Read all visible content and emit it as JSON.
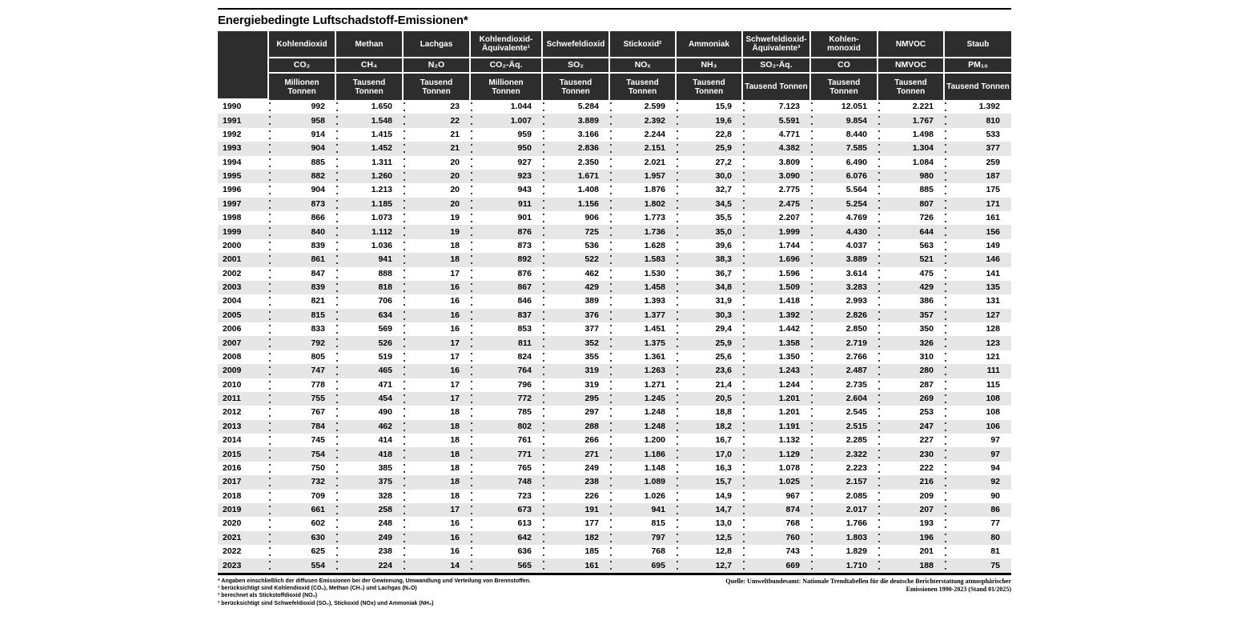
{
  "colors": {
    "header_bg": "#2d2d2d",
    "row_stripe": "#e6e6e6",
    "rule": "#000000"
  },
  "title": "Energiebedingte Luftschadstoff-Emissionen*",
  "table": {
    "year_header": "",
    "columns": [
      {
        "name": "Kohlendioxid",
        "formula": "CO₂",
        "unit": "Millionen\nTonnen"
      },
      {
        "name": "Methan",
        "formula": "CH₄",
        "unit": "Tausend Tonnen"
      },
      {
        "name": "Lachgas",
        "formula": "N₂O",
        "unit": "Tausend Tonnen"
      },
      {
        "name": "Kohlendioxid-\nÄquivalente¹",
        "formula": "CO₂-Äq.",
        "unit": "Millionen\nTonnen"
      },
      {
        "name": "Schwefeldioxid",
        "formula": "SO₂",
        "unit": "Tausend Tonnen"
      },
      {
        "name": "Stickoxid²",
        "formula": "NOₓ",
        "unit": "Tausend Tonnen"
      },
      {
        "name": "Ammoniak",
        "formula": "NH₃",
        "unit": "Tausend Tonnen"
      },
      {
        "name": "Schwefeldioxid-\nÄquivalente³",
        "formula": "SO₂-Äq.",
        "unit": "Tausend Tonnen"
      },
      {
        "name": "Kohlen-\nmonoxid",
        "formula": "CO",
        "unit": "Tausend Tonnen"
      },
      {
        "name": "NMVOC",
        "formula": "NMVOC",
        "unit": "Tausend Tonnen"
      },
      {
        "name": "Staub",
        "formula": "PM₁₀",
        "unit": "Tausend Tonnen"
      }
    ],
    "rows": [
      [
        "1990",
        "992",
        "1.650",
        "23",
        "1.044",
        "5.284",
        "2.599",
        "15,9",
        "7.123",
        "12.051",
        "2.221",
        "1.392"
      ],
      [
        "1991",
        "958",
        "1.548",
        "22",
        "1.007",
        "3.889",
        "2.392",
        "19,6",
        "5.591",
        "9.854",
        "1.767",
        "810"
      ],
      [
        "1992",
        "914",
        "1.415",
        "21",
        "959",
        "3.166",
        "2.244",
        "22,8",
        "4.771",
        "8.440",
        "1.498",
        "533"
      ],
      [
        "1993",
        "904",
        "1.452",
        "21",
        "950",
        "2.836",
        "2.151",
        "25,9",
        "4.382",
        "7.585",
        "1.304",
        "377"
      ],
      [
        "1994",
        "885",
        "1.311",
        "20",
        "927",
        "2.350",
        "2.021",
        "27,2",
        "3.809",
        "6.490",
        "1.084",
        "259"
      ],
      [
        "1995",
        "882",
        "1.260",
        "20",
        "923",
        "1.671",
        "1.957",
        "30,0",
        "3.090",
        "6.076",
        "980",
        "187"
      ],
      [
        "1996",
        "904",
        "1.213",
        "20",
        "943",
        "1.408",
        "1.876",
        "32,7",
        "2.775",
        "5.564",
        "885",
        "175"
      ],
      [
        "1997",
        "873",
        "1.185",
        "20",
        "911",
        "1.156",
        "1.802",
        "34,5",
        "2.475",
        "5.254",
        "807",
        "171"
      ],
      [
        "1998",
        "866",
        "1.073",
        "19",
        "901",
        "906",
        "1.773",
        "35,5",
        "2.207",
        "4.769",
        "726",
        "161"
      ],
      [
        "1999",
        "840",
        "1.112",
        "19",
        "876",
        "725",
        "1.736",
        "35,0",
        "1.999",
        "4.430",
        "644",
        "156"
      ],
      [
        "2000",
        "839",
        "1.036",
        "18",
        "873",
        "536",
        "1.628",
        "39,6",
        "1.744",
        "4.037",
        "563",
        "149"
      ],
      [
        "2001",
        "861",
        "941",
        "18",
        "892",
        "522",
        "1.583",
        "38,3",
        "1.696",
        "3.889",
        "521",
        "146"
      ],
      [
        "2002",
        "847",
        "888",
        "17",
        "876",
        "462",
        "1.530",
        "36,7",
        "1.596",
        "3.614",
        "475",
        "141"
      ],
      [
        "2003",
        "839",
        "818",
        "16",
        "867",
        "429",
        "1.458",
        "34,8",
        "1.509",
        "3.283",
        "429",
        "135"
      ],
      [
        "2004",
        "821",
        "706",
        "16",
        "846",
        "389",
        "1.393",
        "31,9",
        "1.418",
        "2.993",
        "386",
        "131"
      ],
      [
        "2005",
        "815",
        "634",
        "16",
        "837",
        "376",
        "1.377",
        "30,3",
        "1.392",
        "2.826",
        "357",
        "127"
      ],
      [
        "2006",
        "833",
        "569",
        "16",
        "853",
        "377",
        "1.451",
        "29,4",
        "1.442",
        "2.850",
        "350",
        "128"
      ],
      [
        "2007",
        "792",
        "526",
        "17",
        "811",
        "352",
        "1.375",
        "25,9",
        "1.358",
        "2.719",
        "326",
        "123"
      ],
      [
        "2008",
        "805",
        "519",
        "17",
        "824",
        "355",
        "1.361",
        "25,6",
        "1.350",
        "2.766",
        "310",
        "121"
      ],
      [
        "2009",
        "747",
        "465",
        "16",
        "764",
        "319",
        "1.263",
        "23,6",
        "1.243",
        "2.487",
        "280",
        "111"
      ],
      [
        "2010",
        "778",
        "471",
        "17",
        "796",
        "319",
        "1.271",
        "21,4",
        "1.244",
        "2.735",
        "287",
        "115"
      ],
      [
        "2011",
        "755",
        "454",
        "17",
        "772",
        "295",
        "1.245",
        "20,5",
        "1.201",
        "2.604",
        "269",
        "108"
      ],
      [
        "2012",
        "767",
        "490",
        "18",
        "785",
        "297",
        "1.248",
        "18,8",
        "1.201",
        "2.545",
        "253",
        "108"
      ],
      [
        "2013",
        "784",
        "462",
        "18",
        "802",
        "288",
        "1.248",
        "18,2",
        "1.191",
        "2.515",
        "247",
        "106"
      ],
      [
        "2014",
        "745",
        "414",
        "18",
        "761",
        "266",
        "1.200",
        "16,7",
        "1.132",
        "2.285",
        "227",
        "97"
      ],
      [
        "2015",
        "754",
        "418",
        "18",
        "771",
        "271",
        "1.186",
        "17,0",
        "1.129",
        "2.322",
        "230",
        "97"
      ],
      [
        "2016",
        "750",
        "385",
        "18",
        "765",
        "249",
        "1.148",
        "16,3",
        "1.078",
        "2.223",
        "222",
        "94"
      ],
      [
        "2017",
        "732",
        "375",
        "18",
        "748",
        "238",
        "1.089",
        "15,7",
        "1.025",
        "2.157",
        "216",
        "92"
      ],
      [
        "2018",
        "709",
        "328",
        "18",
        "723",
        "226",
        "1.026",
        "14,9",
        "967",
        "2.085",
        "209",
        "90"
      ],
      [
        "2019",
        "661",
        "258",
        "17",
        "673",
        "191",
        "941",
        "14,7",
        "874",
        "2.017",
        "207",
        "86"
      ],
      [
        "2020",
        "602",
        "248",
        "16",
        "613",
        "177",
        "815",
        "13,0",
        "768",
        "1.766",
        "193",
        "77"
      ],
      [
        "2021",
        "630",
        "249",
        "16",
        "642",
        "182",
        "797",
        "12,5",
        "760",
        "1.803",
        "196",
        "80"
      ],
      [
        "2022",
        "625",
        "238",
        "16",
        "636",
        "185",
        "768",
        "12,8",
        "743",
        "1.829",
        "201",
        "81"
      ],
      [
        "2023",
        "554",
        "224",
        "14",
        "565",
        "161",
        "695",
        "12,7",
        "669",
        "1.710",
        "188",
        "75"
      ]
    ]
  },
  "footnotes": [
    "* Angaben einschließlich der diffusen Emissionen bei der Gewinnung, Umwandlung und Verteilung von Brennstoffen.",
    "¹ berücksichtigt sind Kohlendioxid (CO₂), Methan (CH₄) und Lachgas (N₂O)",
    "² berechnet als Stickstoffdioxid (NO₂)",
    "³ berücksichtigt sind Schwefeldioxid (SO₂), Stickoxid (NOx) und Ammoniak (NH₃)"
  ],
  "source_lines": [
    "Quelle: Umweltbundesamt: Nationale Trendtabellen für die deutsche Berichterstattung atmosphärischer",
    "Emissionen 1990-2023 (Stand 01/2025)"
  ]
}
